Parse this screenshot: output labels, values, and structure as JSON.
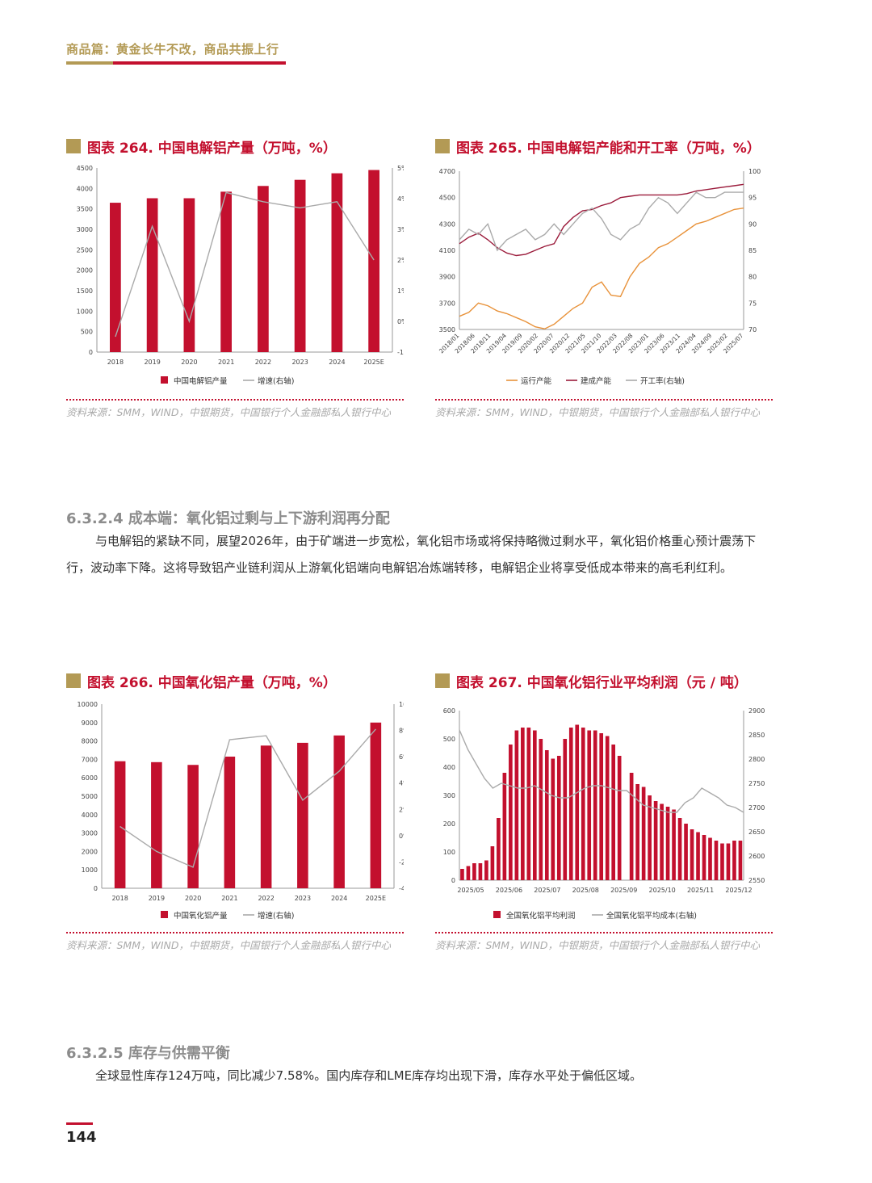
{
  "header": {
    "title": "商品篇：黄金长牛不改，商品共振上行"
  },
  "charts": [
    {
      "title": "图表 264. 中国电解铝产量（万吨，%）",
      "source": "资料来源：SMM，WIND，中银期货，中国银行个人金融部私人银行中心",
      "chart_data": {
        "type": "bar",
        "categories": [
          "2018",
          "2019",
          "2020",
          "2021",
          "2022",
          "2023",
          "2024",
          "2025E"
        ],
        "series": [
          {
            "name": "中国电解铝产量",
            "kind": "bar",
            "axis": "left",
            "color": "#c3102e",
            "values": [
              3650,
              3760,
              3760,
              3920,
              4060,
              4210,
              4370,
              4450
            ]
          },
          {
            "name": "增速(右轴)",
            "kind": "line",
            "axis": "right",
            "color": "#aaaaaa",
            "values": [
              -0.5,
              3.1,
              0.0,
              4.2,
              3.9,
              3.7,
              3.9,
              2.0
            ]
          }
        ],
        "y_left": {
          "min": 0,
          "max": 4500,
          "ticks": [
            0,
            500,
            1000,
            1500,
            2000,
            2500,
            3000,
            3500,
            4000,
            4500
          ]
        },
        "y_right": {
          "min": -1,
          "max": 5,
          "ticks": [
            -1,
            0,
            1,
            2,
            3,
            4,
            5
          ],
          "labels": [
            "-1%",
            "0%",
            "1%",
            "2%",
            "3%",
            "4%",
            "5%"
          ]
        },
        "legend_position": "bottom"
      }
    },
    {
      "title": "图表 265. 中国电解铝产能和开工率（万吨，%）",
      "source": "资料来源：SMM，WIND，中银期货，中国银行个人金融部私人银行中心",
      "chart_data": {
        "type": "line",
        "x_ticks": [
          "2018/01",
          "2018/06",
          "2018/11",
          "2019/04",
          "2019/09",
          "2020/02",
          "2020/07",
          "2020/12",
          "2021/05",
          "2021/10",
          "2022/03",
          "2022/08",
          "2023/01",
          "2023/06",
          "2023/11",
          "2024/04",
          "2024/09",
          "2025/02",
          "2025/07"
        ],
        "series": [
          {
            "name": "运行产能",
            "axis": "left",
            "color": "#e8923a",
            "values": [
              3600,
              3630,
              3700,
              3680,
              3640,
              3620,
              3590,
              3560,
              3520,
              3505,
              3540,
              3600,
              3660,
              3700,
              3820,
              3860,
              3760,
              3750,
              3900,
              4000,
              4050,
              4120,
              4150,
              4200,
              4250,
              4300,
              4320,
              4350,
              4380,
              4410,
              4420
            ]
          },
          {
            "name": "建成产能",
            "axis": "left",
            "color": "#9b1b3b",
            "values": [
              4150,
              4200,
              4230,
              4180,
              4120,
              4080,
              4060,
              4070,
              4100,
              4130,
              4150,
              4280,
              4350,
              4400,
              4410,
              4440,
              4460,
              4500,
              4510,
              4520,
              4520,
              4520,
              4520,
              4520,
              4530,
              4550,
              4560,
              4570,
              4580,
              4590,
              4600
            ]
          },
          {
            "name": "开工率(右轴)",
            "axis": "right",
            "color": "#aaaaaa",
            "values": [
              87,
              89,
              88,
              90,
              85,
              87,
              88,
              89,
              87,
              88,
              90,
              88,
              90,
              92,
              93,
              91,
              88,
              87,
              89,
              90,
              93,
              95,
              94,
              92,
              94,
              96,
              95,
              95,
              96,
              96,
              96
            ]
          }
        ],
        "y_left": {
          "min": 3500,
          "max": 4700,
          "ticks": [
            3500,
            3700,
            3900,
            4100,
            4300,
            4500,
            4700
          ]
        },
        "y_right": {
          "min": 70,
          "max": 100,
          "ticks": [
            70,
            75,
            80,
            85,
            90,
            95,
            100
          ]
        },
        "legend_position": "bottom"
      }
    },
    {
      "title": "图表 266. 中国氧化铝产量（万吨，%）",
      "source": "资料来源：SMM，WIND，中银期货，中国银行个人金融部私人银行中心",
      "chart_data": {
        "type": "bar",
        "categories": [
          "2018",
          "2019",
          "2020",
          "2021",
          "2022",
          "2023",
          "2024",
          "2025E"
        ],
        "series": [
          {
            "name": "中国氧化铝产量",
            "kind": "bar",
            "axis": "left",
            "color": "#c3102e",
            "values": [
              6900,
              6850,
              6700,
              7150,
              7750,
              7900,
              8300,
              9000
            ]
          },
          {
            "name": "增速(右轴)",
            "kind": "line",
            "axis": "right",
            "color": "#aaaaaa",
            "values": [
              0.7,
              -1.2,
              -2.4,
              7.3,
              7.6,
              2.7,
              4.9,
              8.1
            ]
          }
        ],
        "y_left": {
          "min": 0,
          "max": 10000,
          "ticks": [
            0,
            1000,
            2000,
            3000,
            4000,
            5000,
            6000,
            7000,
            8000,
            9000,
            10000
          ]
        },
        "y_right": {
          "min": -4,
          "max": 10,
          "ticks": [
            -4,
            -2,
            0,
            2,
            4,
            6,
            8,
            10
          ],
          "labels": [
            "-4%",
            "-2%",
            "0%",
            "2%",
            "4%",
            "6%",
            "8%",
            "10%"
          ]
        },
        "legend_position": "bottom"
      }
    },
    {
      "title": "图表 267. 中国氧化铝行业平均利润（元 / 吨）",
      "source": "资料来源：SMM，WIND，中银期货，中国银行个人金融部私人银行中心",
      "chart_data": {
        "type": "bar",
        "x_ticks": [
          "2025/05",
          "2025/06",
          "2025/07",
          "2025/08",
          "2025/09",
          "2025/10",
          "2025/11",
          "2025/12"
        ],
        "series": [
          {
            "name": "全国氧化铝平均利润",
            "kind": "bar",
            "axis": "left",
            "color": "#c3102e",
            "values": [
              40,
              50,
              60,
              60,
              70,
              120,
              220,
              380,
              480,
              530,
              540,
              540,
              530,
              500,
              460,
              430,
              440,
              500,
              540,
              550,
              540,
              530,
              530,
              520,
              510,
              480,
              440,
              0,
              380,
              340,
              330,
              300,
              280,
              270,
              260,
              250,
              220,
              200,
              180,
              170,
              160,
              150,
              140,
              130,
              130,
              140,
              140
            ]
          },
          {
            "name": "全国氧化铝平均成本(右轴)",
            "kind": "line",
            "axis": "right",
            "color": "#aaaaaa",
            "values": [
              2860,
              2820,
              2790,
              2760,
              2740,
              2750,
              2745,
              2740,
              2740,
              2745,
              2735,
              2725,
              2720,
              2720,
              2730,
              2740,
              2745,
              2745,
              2740,
              2735,
              2735,
              2720,
              2705,
              2700,
              2695,
              2690,
              2690,
              2710,
              2720,
              2740,
              2730,
              2720,
              2705,
              2700,
              2690
            ]
          }
        ],
        "y_left": {
          "min": 0,
          "max": 600,
          "ticks": [
            0,
            100,
            200,
            300,
            400,
            500,
            600
          ]
        },
        "y_right": {
          "min": 2550,
          "max": 2900,
          "ticks": [
            2550,
            2600,
            2650,
            2700,
            2750,
            2800,
            2850,
            2900
          ]
        },
        "legend_position": "bottom"
      }
    }
  ],
  "sections": [
    {
      "heading": "6.3.2.4 成本端：氧化铝过剩与上下游利润再分配",
      "paragraph": "与电解铝的紧缺不同，展望2026年，由于矿端进一步宽松，氧化铝市场或将保持略微过剩水平，氧化铝价格重心预计震荡下行，波动率下降。这将导致铝产业链利润从上游氧化铝端向电解铝冶炼端转移，电解铝企业将享受低成本带来的高毛利红利。"
    },
    {
      "heading": "6.3.2.5 库存与供需平衡",
      "paragraph": "全球显性库存124万吨，同比减少7.58%。国内库存和LME库存均出现下滑，库存水平处于偏低区域。"
    }
  ],
  "page_number": "144"
}
